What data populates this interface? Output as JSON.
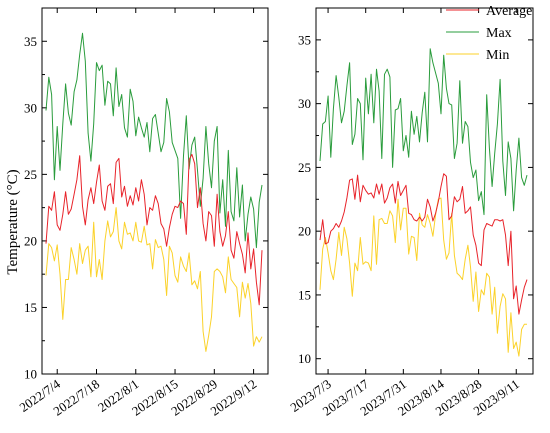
{
  "chart_data": [
    {
      "type": "line",
      "ylabel": "Temperature (°C)",
      "ylim": [
        10,
        37.5
      ],
      "yticks": [
        10,
        15,
        20,
        25,
        30,
        35
      ],
      "x_dates": [
        "2022/7/4",
        "2022/7/18",
        "2022/8/1",
        "2022/8/15",
        "2022/8/29",
        "2022/9/12"
      ],
      "x": [
        "7/1",
        "7/2",
        "7/3",
        "7/4",
        "7/5",
        "7/6",
        "7/7",
        "7/8",
        "7/9",
        "7/10",
        "7/11",
        "7/12",
        "7/13",
        "7/14",
        "7/15",
        "7/16",
        "7/17",
        "7/18",
        "7/19",
        "7/20",
        "7/21",
        "7/22",
        "7/23",
        "7/24",
        "7/25",
        "7/26",
        "7/27",
        "7/28",
        "7/29",
        "7/30",
        "7/31",
        "8/1",
        "8/2",
        "8/3",
        "8/4",
        "8/5",
        "8/6",
        "8/7",
        "8/8",
        "8/9",
        "8/10",
        "8/11",
        "8/12",
        "8/13",
        "8/14",
        "8/15",
        "8/16",
        "8/17",
        "8/18",
        "8/19",
        "8/20",
        "8/21",
        "8/22",
        "8/23",
        "8/24",
        "8/25",
        "8/26",
        "8/27",
        "8/28",
        "8/29",
        "8/30",
        "8/31",
        "9/1",
        "9/2",
        "9/3",
        "9/4",
        "9/5",
        "9/6",
        "9/7",
        "9/8",
        "9/9",
        "9/10",
        "9/11",
        "9/12",
        "9/13",
        "9/14",
        "9/15",
        "9/16"
      ],
      "series": [
        {
          "name": "Average",
          "color": "#e8232a",
          "values": [
            19.8,
            22.6,
            22.3,
            23.7,
            21.2,
            20.8,
            22.0,
            23.7,
            22.0,
            22.4,
            23.5,
            24.6,
            26.4,
            22.6,
            21.2,
            23.1,
            24.0,
            22.8,
            24.4,
            25.7,
            23.0,
            22.3,
            24.1,
            24.3,
            22.8,
            25.9,
            26.2,
            23.3,
            24.1,
            22.6,
            23.4,
            22.7,
            24.0,
            23.0,
            24.6,
            23.5,
            21.2,
            22.5,
            22.3,
            23.4,
            22.8,
            21.3,
            20.9,
            19.6,
            21.0,
            22.0,
            22.6,
            22.5,
            23.0,
            22.8,
            20.5,
            26.1,
            26.5,
            25.8,
            22.5,
            24.0,
            21.3,
            20.0,
            22.2,
            21.9,
            19.6,
            23.5,
            20.7,
            19.6,
            20.4,
            22.2,
            19.3,
            18.7,
            20.7,
            19.8,
            19.0,
            17.6,
            20.6,
            17.9,
            19.4,
            16.9,
            15.2,
            19.3
          ]
        },
        {
          "name": "Max",
          "color": "#2a9c3c",
          "values": [
            29.8,
            32.3,
            31.0,
            24.6,
            28.6,
            25.3,
            28.8,
            31.8,
            29.6,
            28.7,
            31.2,
            32.1,
            34.0,
            35.6,
            33.5,
            28.1,
            26.0,
            28.8,
            33.4,
            32.8,
            33.2,
            30.2,
            32.0,
            31.8,
            29.4,
            33.0,
            30.1,
            31.0,
            28.5,
            27.8,
            31.4,
            30.5,
            27.9,
            29.3,
            28.5,
            27.8,
            28.9,
            26.7,
            29.2,
            29.5,
            28.1,
            26.7,
            27.4,
            30.7,
            29.7,
            27.4,
            26.8,
            26.2,
            21.7,
            26.4,
            29.4,
            25.4,
            27.2,
            27.8,
            25.3,
            22.6,
            24.7,
            28.6,
            25.8,
            24.0,
            27.5,
            28.6,
            22.1,
            24.6,
            21.1,
            26.8,
            22.2,
            21.5,
            25.5,
            21.8,
            24.2,
            20.0,
            22.0,
            23.3,
            22.4,
            19.5,
            22.9,
            24.2
          ]
        },
        {
          "name": "Min",
          "color": "#fbd22a",
          "values": [
            17.4,
            19.8,
            19.5,
            18.5,
            19.7,
            17.5,
            14.1,
            17.1,
            17.1,
            19.5,
            18.6,
            17.5,
            19.8,
            18.3,
            19.3,
            19.6,
            17.3,
            21.4,
            17.3,
            18.6,
            17.1,
            20.0,
            21.5,
            20.3,
            20.7,
            22.5,
            20.0,
            19.4,
            21.4,
            20.5,
            20.6,
            20.0,
            21.4,
            20.0,
            19.9,
            21.1,
            19.7,
            19.8,
            17.9,
            20.1,
            19.5,
            19.6,
            18.6,
            15.9,
            19.6,
            19.1,
            17.4,
            16.9,
            18.8,
            18.1,
            17.7,
            19.1,
            16.7,
            17.0,
            16.4,
            17.7,
            13.2,
            11.7,
            12.9,
            14.3,
            17.7,
            17.9,
            17.7,
            17.3,
            16.1,
            18.8,
            17.1,
            16.8,
            16.5,
            14.3,
            16.9,
            15.7,
            16.8,
            15.3,
            12.1,
            12.8,
            12.4,
            12.8
          ]
        }
      ]
    },
    {
      "type": "line",
      "ylim": [
        8.8,
        37.5
      ],
      "yticks": [
        10,
        15,
        20,
        25,
        30,
        35
      ],
      "x_dates": [
        "2023/7/3",
        "2023/7/17",
        "2023/7/31",
        "2023/8/14",
        "2023/8/28",
        "2023/9/11"
      ],
      "x": [
        "7/1",
        "7/2",
        "7/3",
        "7/4",
        "7/5",
        "7/6",
        "7/7",
        "7/8",
        "7/9",
        "7/10",
        "7/11",
        "7/12",
        "7/13",
        "7/14",
        "7/15",
        "7/16",
        "7/17",
        "7/18",
        "7/19",
        "7/20",
        "7/21",
        "7/22",
        "7/23",
        "7/24",
        "7/25",
        "7/26",
        "7/27",
        "7/28",
        "7/29",
        "7/30",
        "7/31",
        "8/1",
        "8/2",
        "8/3",
        "8/4",
        "8/5",
        "8/6",
        "8/7",
        "8/8",
        "8/9",
        "8/10",
        "8/11",
        "8/12",
        "8/13",
        "8/14",
        "8/15",
        "8/16",
        "8/17",
        "8/18",
        "8/19",
        "8/20",
        "8/21",
        "8/22",
        "8/23",
        "8/24",
        "8/25",
        "8/26",
        "8/27",
        "8/28",
        "8/29",
        "8/30",
        "8/31",
        "9/1",
        "9/2",
        "9/3",
        "9/4",
        "9/5",
        "9/6",
        "9/7",
        "9/8",
        "9/9",
        "9/10",
        "9/11",
        "9/12",
        "9/13",
        "9/14",
        "9/15",
        "9/16"
      ],
      "series": [
        {
          "name": "Average",
          "color": "#e8232a",
          "values": [
            19.3,
            20.9,
            19.0,
            19.1,
            20.0,
            20.2,
            20.6,
            20.3,
            20.8,
            21.5,
            22.6,
            24.0,
            24.1,
            22.5,
            24.4,
            22.3,
            23.6,
            23.2,
            22.9,
            23.0,
            22.6,
            23.7,
            22.9,
            23.7,
            22.2,
            22.6,
            23.4,
            23.7,
            22.2,
            23.9,
            22.8,
            23.2,
            23.6,
            21.4,
            21.3,
            20.9,
            20.8,
            21.1,
            20.8,
            21.1,
            22.5,
            21.9,
            20.8,
            21.4,
            22.3,
            23.5,
            24.5,
            24.3,
            20.9,
            21.2,
            22.7,
            22.3,
            22.5,
            23.5,
            21.4,
            21.6,
            21.9,
            19.7,
            18.9,
            17.5,
            17.3,
            20.1,
            20.6,
            20.5,
            20.4,
            20.9,
            20.9,
            20.8,
            20.9,
            19.7,
            17.3,
            20.0,
            14.7,
            15.7,
            13.5,
            14.6,
            15.6,
            16.2
          ]
        },
        {
          "name": "Max",
          "color": "#2a9c3c",
          "values": [
            25.5,
            28.4,
            28.6,
            30.6,
            25.8,
            29.6,
            32.2,
            30.5,
            28.5,
            29.4,
            31.4,
            33.2,
            26.8,
            27.6,
            30.4,
            30.0,
            25.6,
            32.0,
            29.2,
            32.3,
            28.5,
            32.7,
            31.0,
            25.7,
            32.3,
            32.7,
            32.1,
            25.0,
            29.5,
            29.6,
            30.4,
            26.3,
            27.5,
            25.8,
            29.4,
            27.6,
            29.0,
            27.0,
            29.3,
            30.9,
            27.0,
            34.3,
            33.2,
            32.4,
            31.6,
            29.2,
            33.8,
            31.2,
            30.0,
            29.9,
            25.7,
            26.9,
            31.8,
            26.9,
            28.6,
            28.2,
            25.4,
            24.2,
            24.8,
            22.4,
            23.1,
            21.3,
            30.7,
            26.5,
            23.5,
            26.1,
            28.4,
            31.9,
            25.5,
            22.8,
            27.0,
            25.7,
            21.6,
            24.8,
            27.3,
            24.2,
            23.6,
            24.4
          ]
        },
        {
          "name": "Min",
          "color": "#fbd22a",
          "values": [
            15.4,
            18.6,
            19.5,
            18.3,
            16.9,
            16.2,
            17.8,
            19.9,
            18.1,
            20.3,
            19.4,
            17.5,
            14.9,
            17.5,
            16.9,
            19.5,
            17.4,
            17.6,
            17.5,
            16.9,
            21.2,
            17.4,
            20.9,
            21.0,
            20.6,
            20.6,
            21.6,
            21.2,
            19.1,
            22.5,
            20.1,
            21.8,
            21.8,
            18.2,
            19.6,
            19.5,
            17.7,
            21.4,
            20.5,
            20.3,
            21.3,
            20.6,
            19.6,
            21.3,
            22.5,
            22.6,
            19.3,
            17.8,
            18.3,
            21.4,
            18.1,
            16.7,
            16.5,
            16.2,
            17.8,
            18.9,
            17.2,
            14.5,
            16.8,
            13.7,
            15.4,
            15.0,
            16.7,
            16.4,
            13.5,
            15.6,
            12.0,
            14.1,
            15.1,
            14.7,
            10.5,
            13.6,
            10.8,
            11.3,
            10.2,
            12.3,
            12.7,
            12.7
          ]
        }
      ]
    }
  ]
}
